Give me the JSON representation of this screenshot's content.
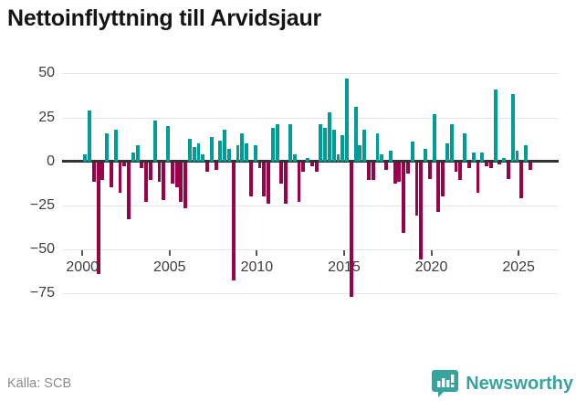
{
  "header": {
    "title": "Nettoinflyttning till Arvidsjaur"
  },
  "footer": {
    "source": "Källa: SCB",
    "brand": "Newsworthy"
  },
  "chart_data": {
    "type": "bar",
    "title": "Nettoinflyttning till Arvidsjaur",
    "series_name": "Nettoinflyttning per kvartal",
    "frequency": "quarterly",
    "start_year": 2000,
    "start_quarter": 1,
    "values": [
      4,
      29,
      -11,
      -63,
      -10,
      16,
      -14,
      18,
      -17,
      -2,
      -32,
      5,
      9,
      -3,
      -22,
      -10,
      23,
      -11,
      -21,
      20,
      -12,
      -14,
      -22,
      -26,
      13,
      8,
      10,
      4,
      -5,
      14,
      -4,
      12,
      18,
      7,
      -67,
      9,
      16,
      10,
      -19,
      9,
      -3,
      -19,
      -23,
      19,
      21,
      -12,
      -23,
      21,
      4,
      -22,
      -5,
      2,
      -2,
      -5,
      21,
      19,
      28,
      18,
      4,
      15,
      47,
      -76,
      31,
      9,
      18,
      -10,
      -10,
      16,
      4,
      -4,
      6,
      -12,
      -11,
      -40,
      -6,
      11,
      -30,
      -55,
      7,
      -9,
      27,
      -28,
      -19,
      10,
      21,
      -5,
      -10,
      16,
      -3,
      5,
      -17,
      5,
      -2,
      -3,
      41,
      -1,
      2,
      -9,
      38,
      6,
      -20,
      9,
      -4
    ],
    "ylim": [
      -80,
      55
    ],
    "yticks": [
      50,
      25,
      0,
      -25,
      -50,
      -75
    ],
    "ytick_labels": [
      "50",
      "25",
      "0",
      "−25",
      "−50",
      "−75"
    ],
    "xticks": [
      2000,
      2005,
      2010,
      2015,
      2020,
      2025
    ],
    "xtick_labels": [
      "2000",
      "2005",
      "2010",
      "2015",
      "2020",
      "2025"
    ],
    "grid": true,
    "legend": false,
    "positive_color": "#009b94",
    "negative_color": "#990249",
    "axis_color": "#333333",
    "grid_color": "#e4e4e4",
    "brand_color": "#38a39e"
  }
}
